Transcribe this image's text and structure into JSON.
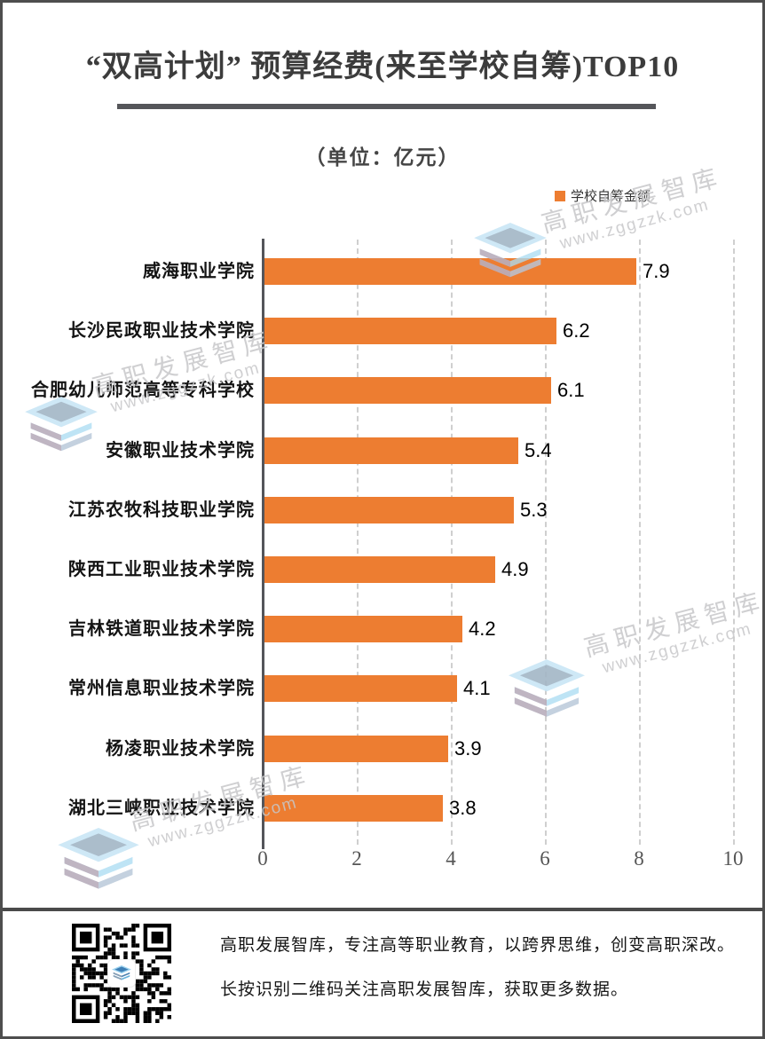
{
  "page": {
    "title": "“双高计划” 预算经费(来至学校自筹)TOP10",
    "subtitle": "（单位：亿元）"
  },
  "legend": {
    "label": "学校自筹金额",
    "color": "#ED7D31"
  },
  "chart_data": {
    "type": "bar",
    "orientation": "horizontal",
    "title": "“双高计划” 预算经费(来至学校自筹)TOP10",
    "unit_note": "（单位：亿元）",
    "series_name": "学校自筹金额",
    "categories": [
      "威海职业学院",
      "长沙民政职业技术学院",
      "合肥幼儿师范高等专科学校",
      "安徽职业技术学院",
      "江苏农牧科技职业学院",
      "陕西工业职业技术学院",
      "吉林铁道职业技术学院",
      "常州信息职业技术学院",
      "杨凌职业技术学院",
      "湖北三峡职业技术学院"
    ],
    "values": [
      7.9,
      6.2,
      6.1,
      5.4,
      5.3,
      4.9,
      4.2,
      4.1,
      3.9,
      3.8
    ],
    "x_ticks": [
      0,
      2,
      4,
      6,
      8,
      10
    ],
    "xlim": [
      0,
      10
    ],
    "bar_color": "#ED7D31",
    "grid": "dashed-vertical",
    "legend_position": "top-right",
    "value_labels": "outside-end"
  },
  "watermark": {
    "line1": "高职发展智库",
    "line2": "www.zggzzk.com"
  },
  "footer": {
    "line1": "高职发展智库，专注高等职业教育，以跨界思维，创变高职深改。",
    "line2": "长按识别二维码关注高职发展智库，获取更多数据。"
  }
}
